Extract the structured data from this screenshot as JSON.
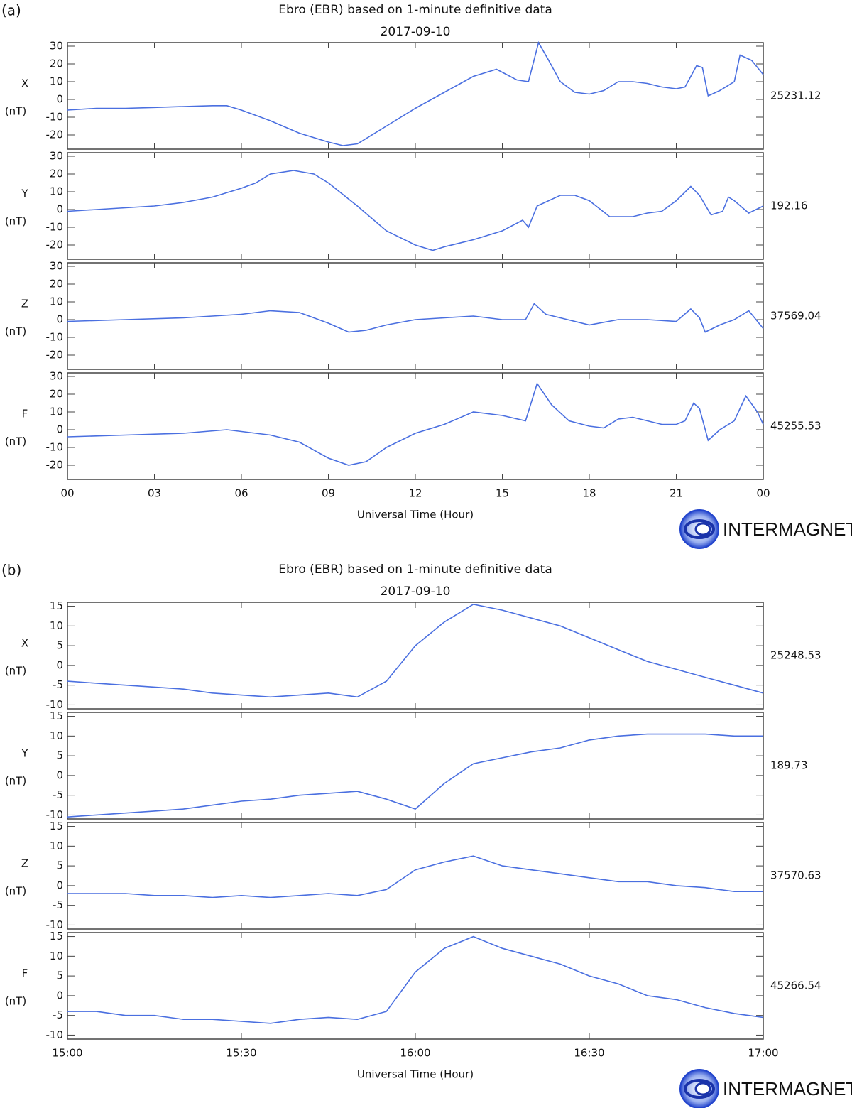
{
  "chart_data": [
    {
      "type": "line",
      "panel_label": "(a)",
      "title": "Ebro (EBR) based on 1-minute definitive data",
      "subtitle": "2017-09-10",
      "ylabel": "X",
      "yunit": "(nT)",
      "baseline": "25231.12",
      "color": "#4a6fe0",
      "ylim": [
        -28,
        32
      ],
      "yticks": [
        -20,
        -10,
        0,
        10,
        20,
        30
      ],
      "x": [
        0,
        1,
        2,
        3,
        4,
        5,
        5.5,
        6,
        7,
        8,
        9,
        9.5,
        10,
        11,
        12,
        13,
        14,
        14.8,
        15.5,
        15.9,
        16.25,
        16.6,
        17,
        17.5,
        18,
        18.5,
        19,
        19.5,
        20,
        20.5,
        21,
        21.3,
        21.7,
        21.9,
        22.1,
        22.5,
        23,
        23.2,
        23.6,
        24
      ],
      "values": [
        -6,
        -5,
        -5,
        -4.5,
        -4,
        -3.5,
        -3.5,
        -6,
        -12,
        -19,
        -24,
        -26,
        -25,
        -15,
        -5,
        4,
        13,
        17,
        11,
        10,
        32,
        22,
        10,
        4,
        3,
        5,
        10,
        10,
        9,
        7,
        6,
        7,
        19,
        18,
        2,
        5,
        10,
        25,
        22,
        14
      ]
    },
    {
      "type": "line",
      "ylabel": "Y",
      "yunit": "(nT)",
      "baseline": "192.16",
      "color": "#4a6fe0",
      "ylim": [
        -28,
        32
      ],
      "yticks": [
        -20,
        -10,
        0,
        10,
        20,
        30
      ],
      "x": [
        0,
        1,
        2,
        3,
        4,
        5,
        6,
        6.5,
        7,
        7.8,
        8.5,
        9,
        10,
        11,
        12,
        12.6,
        13,
        14,
        15,
        15.7,
        15.9,
        16.2,
        17,
        17.5,
        18,
        18.7,
        19.5,
        20,
        20.5,
        21,
        21.5,
        21.8,
        22.2,
        22.6,
        22.8,
        23,
        23.5,
        24
      ],
      "values": [
        -1,
        0,
        1,
        2,
        4,
        7,
        12,
        15,
        20,
        22,
        20,
        15,
        2,
        -12,
        -20,
        -23,
        -21,
        -17,
        -12,
        -6,
        -10,
        2,
        8,
        8,
        5,
        -4,
        -4,
        -2,
        -1,
        5,
        13,
        8,
        -3,
        -1,
        7,
        5,
        -2,
        2
      ]
    },
    {
      "type": "line",
      "ylabel": "Z",
      "yunit": "(nT)",
      "baseline": "37569.04",
      "color": "#4a6fe0",
      "ylim": [
        -28,
        32
      ],
      "yticks": [
        -20,
        -10,
        0,
        10,
        20,
        30
      ],
      "x": [
        0,
        2,
        4,
        6,
        7,
        8,
        9,
        9.7,
        10.3,
        11,
        12,
        13,
        14,
        15,
        15.8,
        16.1,
        16.5,
        17,
        18,
        19,
        20,
        21,
        21.5,
        21.8,
        22,
        22.5,
        23,
        23.5,
        24
      ],
      "values": [
        -1,
        0,
        1,
        3,
        5,
        4,
        -2,
        -7,
        -6,
        -3,
        0,
        1,
        2,
        0,
        0,
        9,
        3,
        1,
        -3,
        0,
        0,
        -1,
        6,
        1,
        -7,
        -3,
        0,
        5,
        -5
      ]
    },
    {
      "type": "line",
      "ylabel": "F",
      "yunit": "(nT)",
      "baseline": "45255.53",
      "color": "#4a6fe0",
      "ylim": [
        -28,
        32
      ],
      "yticks": [
        -20,
        -10,
        0,
        10,
        20,
        30
      ],
      "xlim": [
        0,
        24
      ],
      "xticks": [
        {
          "value": 0,
          "label": "00"
        },
        {
          "value": 3,
          "label": "03"
        },
        {
          "value": 6,
          "label": "06"
        },
        {
          "value": 9,
          "label": "09"
        },
        12,
        15,
        18,
        21,
        {
          "value": 24,
          "label": "00"
        }
      ],
      "xlabel": "Universal Time (Hour)",
      "logo": "INTERMAGNET",
      "x": [
        0,
        2,
        4,
        5.5,
        6,
        7,
        8,
        9,
        9.7,
        10.3,
        11,
        12,
        13,
        14,
        15,
        15.8,
        16.2,
        16.7,
        17.3,
        18,
        18.5,
        19,
        19.5,
        20,
        20.5,
        21,
        21.3,
        21.6,
        21.8,
        22.1,
        22.5,
        23,
        23.4,
        23.8,
        24
      ],
      "values": [
        -4,
        -3,
        -2,
        0,
        -1,
        -3,
        -7,
        -16,
        -20,
        -18,
        -10,
        -2,
        3,
        10,
        8,
        5,
        26,
        14,
        5,
        2,
        1,
        6,
        7,
        5,
        3,
        3,
        5,
        15,
        12,
        -6,
        0,
        5,
        19,
        10,
        3
      ]
    },
    {
      "type": "line",
      "panel_label": "(b)",
      "title": "Ebro (EBR) based on 1-minute definitive data",
      "subtitle": "2017-09-10",
      "ylabel": "X",
      "yunit": "(nT)",
      "baseline": "25248.53",
      "color": "#4a6fe0",
      "ylim": [
        -11,
        16
      ],
      "yticks": [
        -10,
        -5,
        0,
        5,
        10,
        15
      ],
      "x": [
        900,
        905,
        910,
        915,
        920,
        925,
        930,
        935,
        940,
        945,
        950,
        955,
        960,
        965,
        970,
        975,
        980,
        985,
        990,
        995,
        1000,
        1005,
        1010,
        1015,
        1020
      ],
      "values": [
        -4,
        -4.5,
        -5,
        -5.5,
        -6,
        -7,
        -7.5,
        -8,
        -7.5,
        -7,
        -8,
        -4,
        5,
        11,
        15.5,
        14,
        12,
        10,
        7,
        4,
        1,
        -1,
        -3,
        -5,
        -7
      ]
    },
    {
      "type": "line",
      "ylabel": "Y",
      "yunit": "(nT)",
      "baseline": "189.73",
      "color": "#4a6fe0",
      "ylim": [
        -11,
        16
      ],
      "yticks": [
        -10,
        -5,
        0,
        5,
        10,
        15
      ],
      "x": [
        900,
        905,
        910,
        915,
        920,
        925,
        930,
        935,
        940,
        945,
        950,
        955,
        960,
        965,
        970,
        975,
        980,
        985,
        990,
        995,
        1000,
        1005,
        1010,
        1015,
        1020
      ],
      "values": [
        -10.5,
        -10,
        -9.5,
        -9,
        -8.5,
        -7.5,
        -6.5,
        -6,
        -5,
        -4.5,
        -4,
        -6,
        -8.5,
        -2,
        3,
        4.5,
        6,
        7,
        9,
        10,
        10.5,
        10.5,
        10.5,
        10,
        10
      ]
    },
    {
      "type": "line",
      "ylabel": "Z",
      "yunit": "(nT)",
      "baseline": "37570.63",
      "color": "#4a6fe0",
      "ylim": [
        -11,
        16
      ],
      "yticks": [
        -10,
        -5,
        0,
        5,
        10,
        15
      ],
      "x": [
        900,
        905,
        910,
        915,
        920,
        925,
        930,
        935,
        940,
        945,
        950,
        955,
        960,
        965,
        970,
        975,
        980,
        985,
        990,
        995,
        1000,
        1005,
        1010,
        1015,
        1020
      ],
      "values": [
        -2,
        -2,
        -2,
        -2.5,
        -2.5,
        -3,
        -2.5,
        -3,
        -2.5,
        -2,
        -2.5,
        -1,
        4,
        6,
        7.5,
        5,
        4,
        3,
        2,
        1,
        1,
        0,
        -0.5,
        -1.5,
        -1.5
      ]
    },
    {
      "type": "line",
      "ylabel": "F",
      "yunit": "(nT)",
      "baseline": "45266.54",
      "color": "#4a6fe0",
      "ylim": [
        -11,
        16
      ],
      "yticks": [
        -10,
        -5,
        0,
        5,
        10,
        15
      ],
      "xlim": [
        900,
        1020
      ],
      "xticks": [
        {
          "value": 900,
          "label": "15:00"
        },
        {
          "value": 930,
          "label": "15:30"
        },
        {
          "value": 960,
          "label": "16:00"
        },
        {
          "value": 990,
          "label": "16:30"
        },
        {
          "value": 1020,
          "label": "17:00"
        }
      ],
      "xlabel": "Universal Time (Hour)",
      "logo": "INTERMAGNET",
      "x": [
        900,
        905,
        910,
        915,
        920,
        925,
        930,
        935,
        940,
        945,
        950,
        955,
        960,
        965,
        970,
        975,
        980,
        985,
        990,
        995,
        1000,
        1005,
        1010,
        1015,
        1020
      ],
      "values": [
        -4,
        -4,
        -5,
        -5,
        -6,
        -6,
        -6.5,
        -7,
        -6,
        -5.5,
        -6,
        -4,
        6,
        12,
        15,
        12,
        10,
        8,
        5,
        3,
        0,
        -1,
        -3,
        -4.5,
        -5.5
      ]
    }
  ]
}
